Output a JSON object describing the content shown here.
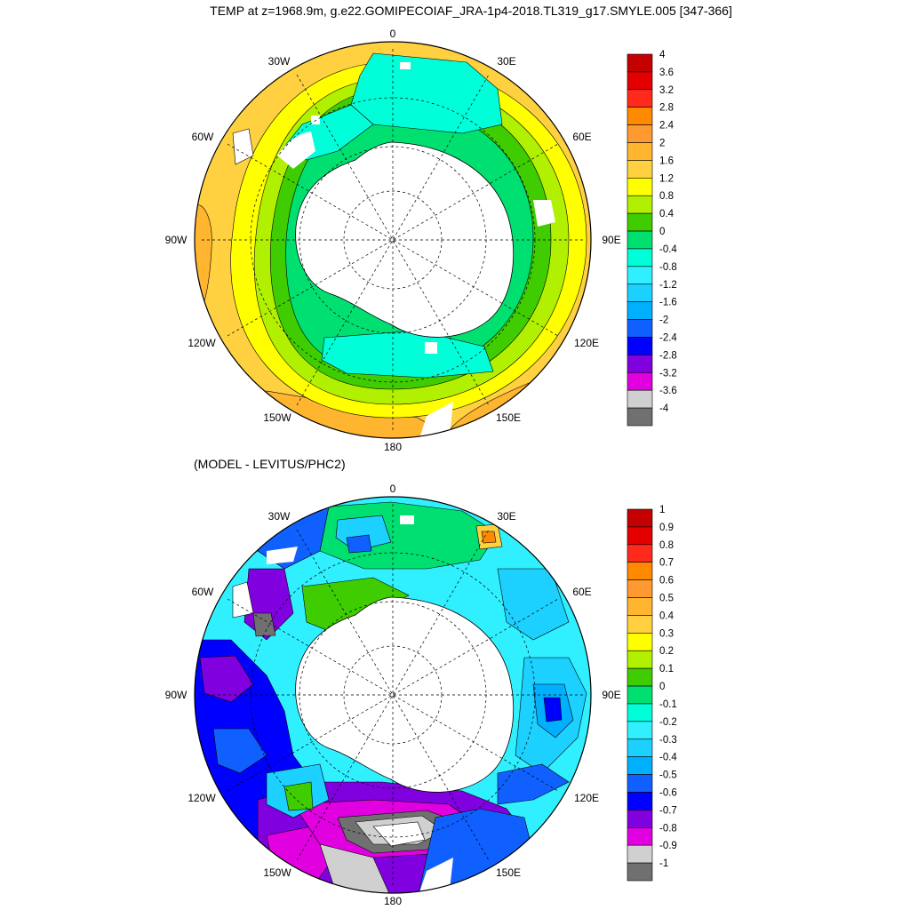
{
  "title": "TEMP at z=1968.9m, g.e22.GOMIPECOIAF_JRA-1p4-2018.TL319_g17.SMYLE.005 [347-366]",
  "subtitle": "(MODEL - LEVITUS/PHC2)",
  "longitude_labels": {
    "top": "0",
    "tr": "30E",
    "r1": "60E",
    "r2": "90E",
    "r3": "120E",
    "br": "150E",
    "bottom": "180",
    "bl": "150W",
    "l3": "120W",
    "l2": "90W",
    "l1": "60W",
    "tl": "30W"
  },
  "top_colorbar": {
    "labels": [
      "4",
      "3.6",
      "3.2",
      "2.8",
      "2.4",
      "2",
      "1.6",
      "1.2",
      "0.8",
      "0.4",
      "0",
      "-0.4",
      "-0.8",
      "-1.2",
      "-1.6",
      "-2",
      "-2.4",
      "-2.8",
      "-3.2",
      "-3.6",
      "-4"
    ],
    "colors": [
      "#c40000",
      "#e40000",
      "#ff2a1c",
      "#ff8a00",
      "#ff9a30",
      "#ffb530",
      "#ffd040",
      "#ffff00",
      "#b0f000",
      "#3fcc00",
      "#00e070",
      "#00ffd8",
      "#30f0ff",
      "#1cd0ff",
      "#00b0ff",
      "#1060ff",
      "#0000ff",
      "#8000e0",
      "#e000e0",
      "#d0d0d0",
      "#707070"
    ]
  },
  "bottom_colorbar": {
    "labels": [
      "1",
      "0.9",
      "0.8",
      "0.7",
      "0.6",
      "0.5",
      "0.4",
      "0.3",
      "0.2",
      "0.1",
      "0",
      "-0.1",
      "-0.2",
      "-0.3",
      "-0.4",
      "-0.5",
      "-0.6",
      "-0.7",
      "-0.8",
      "-0.9",
      "-1"
    ],
    "colors": [
      "#c40000",
      "#e40000",
      "#ff2a1c",
      "#ff8a00",
      "#ff9a30",
      "#ffb530",
      "#ffd040",
      "#ffff00",
      "#b0f000",
      "#3fcc00",
      "#00e070",
      "#00ffd8",
      "#30f0ff",
      "#1cd0ff",
      "#00b0ff",
      "#1060ff",
      "#0000ff",
      "#8000e0",
      "#e000e0",
      "#d0d0d0",
      "#707070"
    ]
  }
}
